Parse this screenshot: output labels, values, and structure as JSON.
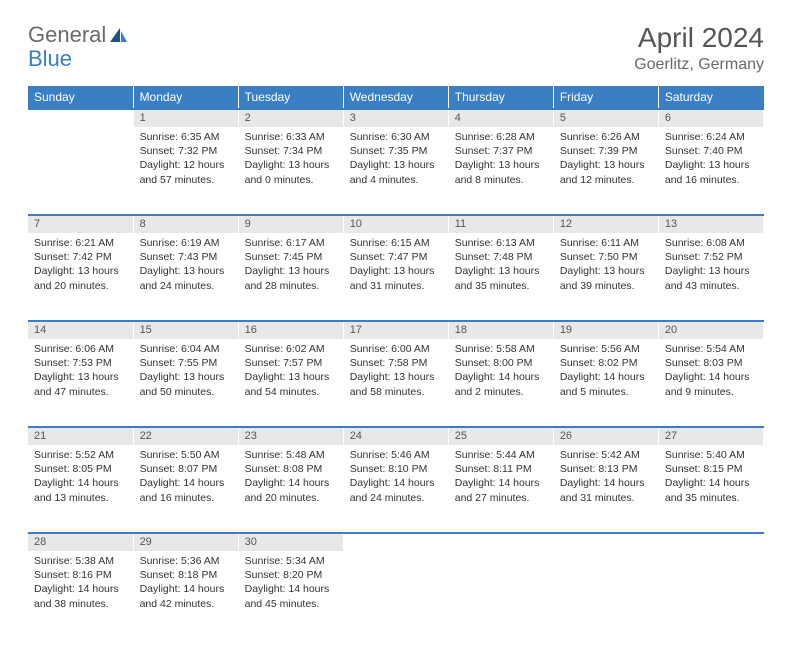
{
  "brand": {
    "part1": "General",
    "part2": "Blue"
  },
  "title": "April 2024",
  "location": "Goerlitz, Germany",
  "colors": {
    "header_bg": "#3a7fc4",
    "header_text": "#ffffff",
    "daynum_bg": "#e8e8e8",
    "text": "#333333",
    "title_color": "#555555",
    "logo_gray": "#6a6a6a",
    "logo_blue": "#3a7fc4"
  },
  "typography": {
    "title_fontsize": 28,
    "location_fontsize": 16,
    "dayheader_fontsize": 12,
    "daynum_fontsize": 11,
    "body_fontsize": 10.5
  },
  "day_headers": [
    "Sunday",
    "Monday",
    "Tuesday",
    "Wednesday",
    "Thursday",
    "Friday",
    "Saturday"
  ],
  "weeks": [
    [
      {
        "n": "",
        "sr": "",
        "ss": "",
        "dl": ""
      },
      {
        "n": "1",
        "sr": "Sunrise: 6:35 AM",
        "ss": "Sunset: 7:32 PM",
        "dl": "Daylight: 12 hours and 57 minutes."
      },
      {
        "n": "2",
        "sr": "Sunrise: 6:33 AM",
        "ss": "Sunset: 7:34 PM",
        "dl": "Daylight: 13 hours and 0 minutes."
      },
      {
        "n": "3",
        "sr": "Sunrise: 6:30 AM",
        "ss": "Sunset: 7:35 PM",
        "dl": "Daylight: 13 hours and 4 minutes."
      },
      {
        "n": "4",
        "sr": "Sunrise: 6:28 AM",
        "ss": "Sunset: 7:37 PM",
        "dl": "Daylight: 13 hours and 8 minutes."
      },
      {
        "n": "5",
        "sr": "Sunrise: 6:26 AM",
        "ss": "Sunset: 7:39 PM",
        "dl": "Daylight: 13 hours and 12 minutes."
      },
      {
        "n": "6",
        "sr": "Sunrise: 6:24 AM",
        "ss": "Sunset: 7:40 PM",
        "dl": "Daylight: 13 hours and 16 minutes."
      }
    ],
    [
      {
        "n": "7",
        "sr": "Sunrise: 6:21 AM",
        "ss": "Sunset: 7:42 PM",
        "dl": "Daylight: 13 hours and 20 minutes."
      },
      {
        "n": "8",
        "sr": "Sunrise: 6:19 AM",
        "ss": "Sunset: 7:43 PM",
        "dl": "Daylight: 13 hours and 24 minutes."
      },
      {
        "n": "9",
        "sr": "Sunrise: 6:17 AM",
        "ss": "Sunset: 7:45 PM",
        "dl": "Daylight: 13 hours and 28 minutes."
      },
      {
        "n": "10",
        "sr": "Sunrise: 6:15 AM",
        "ss": "Sunset: 7:47 PM",
        "dl": "Daylight: 13 hours and 31 minutes."
      },
      {
        "n": "11",
        "sr": "Sunrise: 6:13 AM",
        "ss": "Sunset: 7:48 PM",
        "dl": "Daylight: 13 hours and 35 minutes."
      },
      {
        "n": "12",
        "sr": "Sunrise: 6:11 AM",
        "ss": "Sunset: 7:50 PM",
        "dl": "Daylight: 13 hours and 39 minutes."
      },
      {
        "n": "13",
        "sr": "Sunrise: 6:08 AM",
        "ss": "Sunset: 7:52 PM",
        "dl": "Daylight: 13 hours and 43 minutes."
      }
    ],
    [
      {
        "n": "14",
        "sr": "Sunrise: 6:06 AM",
        "ss": "Sunset: 7:53 PM",
        "dl": "Daylight: 13 hours and 47 minutes."
      },
      {
        "n": "15",
        "sr": "Sunrise: 6:04 AM",
        "ss": "Sunset: 7:55 PM",
        "dl": "Daylight: 13 hours and 50 minutes."
      },
      {
        "n": "16",
        "sr": "Sunrise: 6:02 AM",
        "ss": "Sunset: 7:57 PM",
        "dl": "Daylight: 13 hours and 54 minutes."
      },
      {
        "n": "17",
        "sr": "Sunrise: 6:00 AM",
        "ss": "Sunset: 7:58 PM",
        "dl": "Daylight: 13 hours and 58 minutes."
      },
      {
        "n": "18",
        "sr": "Sunrise: 5:58 AM",
        "ss": "Sunset: 8:00 PM",
        "dl": "Daylight: 14 hours and 2 minutes."
      },
      {
        "n": "19",
        "sr": "Sunrise: 5:56 AM",
        "ss": "Sunset: 8:02 PM",
        "dl": "Daylight: 14 hours and 5 minutes."
      },
      {
        "n": "20",
        "sr": "Sunrise: 5:54 AM",
        "ss": "Sunset: 8:03 PM",
        "dl": "Daylight: 14 hours and 9 minutes."
      }
    ],
    [
      {
        "n": "21",
        "sr": "Sunrise: 5:52 AM",
        "ss": "Sunset: 8:05 PM",
        "dl": "Daylight: 14 hours and 13 minutes."
      },
      {
        "n": "22",
        "sr": "Sunrise: 5:50 AM",
        "ss": "Sunset: 8:07 PM",
        "dl": "Daylight: 14 hours and 16 minutes."
      },
      {
        "n": "23",
        "sr": "Sunrise: 5:48 AM",
        "ss": "Sunset: 8:08 PM",
        "dl": "Daylight: 14 hours and 20 minutes."
      },
      {
        "n": "24",
        "sr": "Sunrise: 5:46 AM",
        "ss": "Sunset: 8:10 PM",
        "dl": "Daylight: 14 hours and 24 minutes."
      },
      {
        "n": "25",
        "sr": "Sunrise: 5:44 AM",
        "ss": "Sunset: 8:11 PM",
        "dl": "Daylight: 14 hours and 27 minutes."
      },
      {
        "n": "26",
        "sr": "Sunrise: 5:42 AM",
        "ss": "Sunset: 8:13 PM",
        "dl": "Daylight: 14 hours and 31 minutes."
      },
      {
        "n": "27",
        "sr": "Sunrise: 5:40 AM",
        "ss": "Sunset: 8:15 PM",
        "dl": "Daylight: 14 hours and 35 minutes."
      }
    ],
    [
      {
        "n": "28",
        "sr": "Sunrise: 5:38 AM",
        "ss": "Sunset: 8:16 PM",
        "dl": "Daylight: 14 hours and 38 minutes."
      },
      {
        "n": "29",
        "sr": "Sunrise: 5:36 AM",
        "ss": "Sunset: 8:18 PM",
        "dl": "Daylight: 14 hours and 42 minutes."
      },
      {
        "n": "30",
        "sr": "Sunrise: 5:34 AM",
        "ss": "Sunset: 8:20 PM",
        "dl": "Daylight: 14 hours and 45 minutes."
      },
      {
        "n": "",
        "sr": "",
        "ss": "",
        "dl": ""
      },
      {
        "n": "",
        "sr": "",
        "ss": "",
        "dl": ""
      },
      {
        "n": "",
        "sr": "",
        "ss": "",
        "dl": ""
      },
      {
        "n": "",
        "sr": "",
        "ss": "",
        "dl": ""
      }
    ]
  ]
}
